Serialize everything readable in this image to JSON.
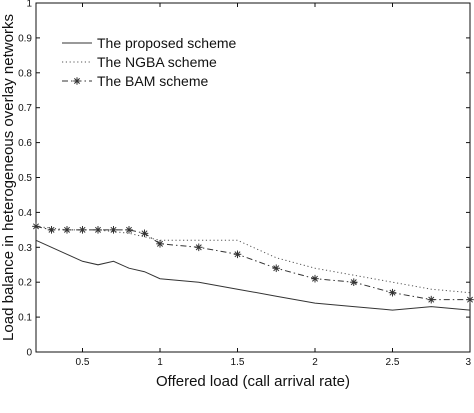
{
  "chart_data": {
    "type": "line",
    "title": "",
    "xlabel": "Offered load (call arrival rate)",
    "ylabel": "Load balance in heterogeneous overlay networks",
    "xlim": [
      0.2,
      3
    ],
    "ylim": [
      0,
      1
    ],
    "x_ticks": [
      0.5,
      1,
      1.5,
      2,
      2.5,
      3
    ],
    "x_tick_labels": [
      "0.5",
      "1",
      "1.5",
      "2",
      "2.5",
      "3"
    ],
    "y_ticks": [
      0,
      0.1,
      0.2,
      0.3,
      0.4,
      0.5,
      0.6,
      0.7,
      0.8,
      0.9,
      1
    ],
    "y_tick_labels": [
      "0",
      "0.1",
      "0.2",
      "0.3",
      "0.4",
      "0.5",
      "0.6",
      "0.7",
      "0.8",
      "0.9",
      "1"
    ],
    "grid": false,
    "legend_position": "top-left",
    "series": [
      {
        "name": "The proposed scheme",
        "style": "solid",
        "marker": "none",
        "color": "#333333",
        "x": [
          0.2,
          0.3,
          0.4,
          0.5,
          0.6,
          0.7,
          0.8,
          0.9,
          1.0,
          1.25,
          1.5,
          1.75,
          2.0,
          2.25,
          2.5,
          2.75,
          3.0
        ],
        "values": [
          0.32,
          0.3,
          0.28,
          0.26,
          0.25,
          0.26,
          0.24,
          0.23,
          0.21,
          0.2,
          0.18,
          0.16,
          0.14,
          0.13,
          0.12,
          0.13,
          0.12
        ]
      },
      {
        "name": "The NGBA scheme",
        "style": "dotted",
        "marker": "none",
        "color": "#555555",
        "x": [
          0.2,
          0.4,
          0.6,
          0.8,
          1.0,
          1.25,
          1.5,
          1.75,
          2.0,
          2.25,
          2.5,
          2.75,
          3.0
        ],
        "values": [
          0.36,
          0.35,
          0.35,
          0.34,
          0.32,
          0.32,
          0.32,
          0.27,
          0.24,
          0.22,
          0.2,
          0.18,
          0.17
        ]
      },
      {
        "name": "The BAM scheme",
        "style": "dashdot",
        "marker": "star",
        "color": "#333333",
        "x": [
          0.2,
          0.3,
          0.4,
          0.5,
          0.6,
          0.7,
          0.8,
          0.9,
          1.0,
          1.25,
          1.5,
          1.75,
          2.0,
          2.25,
          2.5,
          2.75,
          3.0
        ],
        "values": [
          0.36,
          0.35,
          0.35,
          0.35,
          0.35,
          0.35,
          0.35,
          0.34,
          0.31,
          0.3,
          0.28,
          0.24,
          0.21,
          0.2,
          0.17,
          0.15,
          0.15
        ]
      }
    ]
  }
}
